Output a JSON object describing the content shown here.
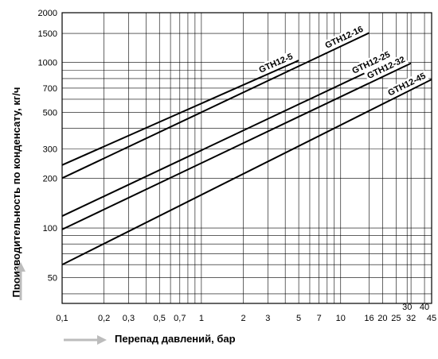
{
  "chart_data": {
    "type": "line",
    "title": "",
    "xlabel": "Перепад давлений, бар",
    "ylabel": "Производительность по конденсату, кг/ч",
    "x_scale": "log",
    "y_scale": "log",
    "xlim": [
      0.1,
      45
    ],
    "ylim": [
      35,
      2000
    ],
    "grid": true,
    "x_ticks": [
      {
        "label": "0,1",
        "value": 0.1
      },
      {
        "label": "0,2",
        "value": 0.2
      },
      {
        "label": "0,3",
        "value": 0.3
      },
      {
        "label": "0,5",
        "value": 0.5
      },
      {
        "label": "0,7",
        "value": 0.7
      },
      {
        "label": "1",
        "value": 1
      },
      {
        "label": "2",
        "value": 2
      },
      {
        "label": "3",
        "value": 3
      },
      {
        "label": "5",
        "value": 5
      },
      {
        "label": "7",
        "value": 7
      },
      {
        "label": "10",
        "value": 10
      },
      {
        "label": "16",
        "value": 16
      },
      {
        "label": "20",
        "value": 20
      },
      {
        "label": "25",
        "value": 25
      },
      {
        "label": "32",
        "value": 32
      },
      {
        "label": "45",
        "value": 45
      }
    ],
    "x_ticks_upper": [
      {
        "label": "30",
        "value": 30
      },
      {
        "label": "40",
        "value": 40
      }
    ],
    "y_ticks": [
      {
        "label": "50",
        "value": 50
      },
      {
        "label": "100",
        "value": 100
      },
      {
        "label": "200",
        "value": 200
      },
      {
        "label": "300",
        "value": 300
      },
      {
        "label": "500",
        "value": 500
      },
      {
        "label": "700",
        "value": 700
      },
      {
        "label": "1000",
        "value": 1000
      },
      {
        "label": "1500",
        "value": 1500
      },
      {
        "label": "2000",
        "value": 2000
      }
    ],
    "series": [
      {
        "name": "GTH12-5",
        "x": [
          0.1,
          5
        ],
        "y": [
          240,
          1030
        ]
      },
      {
        "name": "GTH12-16",
        "x": [
          0.1,
          16
        ],
        "y": [
          200,
          1510
        ]
      },
      {
        "name": "GTH12-25",
        "x": [
          0.1,
          25
        ],
        "y": [
          118,
          1060
        ]
      },
      {
        "name": "GTH12-32",
        "x": [
          0.1,
          32
        ],
        "y": [
          98,
          990
        ]
      },
      {
        "name": "GTH12-45",
        "x": [
          0.1,
          45
        ],
        "y": [
          60,
          790
        ]
      }
    ]
  }
}
